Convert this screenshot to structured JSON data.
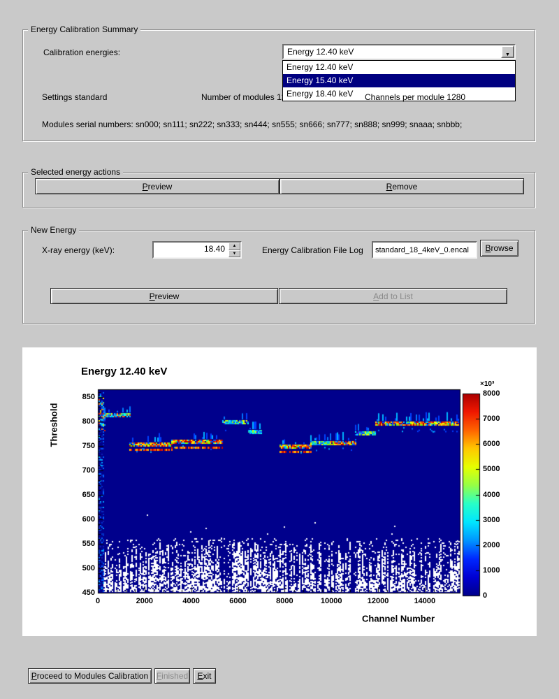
{
  "colors": {
    "window_bg": "#c9c9c9",
    "selection_bg": "#000080",
    "selection_fg": "#ffffff"
  },
  "summary": {
    "legend": "Energy Calibration Summary",
    "calibration_energies_label": "Calibration energies:",
    "combo_value": "Energy 12.40 keV",
    "dropdown_items": [
      "Energy 12.40 keV",
      "Energy 15.40 keV",
      "Energy 18.40 keV"
    ],
    "dropdown_selected_index": 1,
    "settings_label": "Settings standard",
    "modules_label": "Number of modules 12",
    "channels_label": "Channels per module 1280",
    "serials_label": "Modules serial numbers: sn000; sn111; sn222; sn333; sn444; sn555; sn666; sn777; sn888; sn999; snaaa; snbbb;"
  },
  "actions": {
    "legend": "Selected energy actions",
    "preview_label": "Preview",
    "remove_label": "Remove"
  },
  "new_energy": {
    "legend": "New Energy",
    "xray_label": "X-ray energy (keV):",
    "energy_value": "18.40",
    "file_log_label": "Energy Calibration File Log",
    "file_value": "standard_18_4keV_0.encal",
    "browse_label": "Browse",
    "preview_label": "Preview",
    "add_label": "Add to List"
  },
  "footer": {
    "proceed_label": "Proceed to Modules Calibration",
    "finished_label": "Finished",
    "exit_label": "Exit"
  },
  "chart_data": {
    "type": "heatmap",
    "title": "Energy 12.40 keV",
    "xlabel": "Channel Number",
    "ylabel": "Threshold",
    "xlim": [
      0,
      15500
    ],
    "ylim": [
      450,
      865
    ],
    "xticks": [
      0,
      2000,
      4000,
      6000,
      8000,
      10000,
      12000,
      14000
    ],
    "yticks": [
      450,
      500,
      550,
      600,
      650,
      700,
      750,
      800,
      850
    ],
    "background_value_color": "#00008c",
    "empty_color": "#ffffff",
    "noise_top_threshold": 560,
    "seed": 1337,
    "colorbar": {
      "min": 0,
      "max": 8000,
      "ticks": [
        0,
        1000,
        2000,
        3000,
        4000,
        5000,
        6000,
        7000,
        8000
      ],
      "scale_note": "×10³",
      "stops": [
        "#00008c",
        "#0000d2",
        "#0028ff",
        "#0096ff",
        "#00e6ff",
        "#28ffc8",
        "#96ff46",
        "#e6ff00",
        "#ffc800",
        "#ff6400",
        "#f01800",
        "#aa0000"
      ]
    },
    "palettes": {
      "hot": [
        "#b40000",
        "#d20000",
        "#f03000",
        "#ff6000",
        "#ff9600",
        "#ffd200",
        "#ffff00",
        "#78ff00",
        "#00c8ff",
        "#0050ff"
      ],
      "cool": [
        "#00ffff",
        "#00d2ff",
        "#00a0ff",
        "#0064ff",
        "#2832e6",
        "#28d2a0",
        "#96ff00",
        "#e1ff00"
      ],
      "mixed": [
        "#1e28c8",
        "#0064ff",
        "#00b4ff",
        "#00ffff",
        "#50e678",
        "#ffe100",
        "#ff7800",
        "#e12800"
      ]
    },
    "bands": [
      {
        "ch0": 100,
        "ch1": 1350,
        "threshold": 812,
        "style": "mixed",
        "whisker": 0.35
      },
      {
        "ch0": 1350,
        "ch1": 3150,
        "threshold": 752,
        "style": "hot",
        "double": true
      },
      {
        "ch0": 3150,
        "ch1": 5330,
        "threshold": 757,
        "style": "hot",
        "double": true
      },
      {
        "ch0": 5330,
        "ch1": 6440,
        "threshold": 797,
        "style": "cool"
      },
      {
        "ch0": 6440,
        "ch1": 6980,
        "threshold": 778,
        "style": "cool"
      },
      {
        "ch0": 7780,
        "ch1": 9100,
        "threshold": 748,
        "style": "hot",
        "double": true
      },
      {
        "ch0": 9100,
        "ch1": 9880,
        "threshold": 754,
        "style": "cool"
      },
      {
        "ch0": 9880,
        "ch1": 11020,
        "threshold": 754,
        "style": "hot"
      },
      {
        "ch0": 11020,
        "ch1": 11890,
        "threshold": 774,
        "style": "cool"
      },
      {
        "ch0": 11890,
        "ch1": 15450,
        "threshold": 795,
        "style": "hot",
        "whisker": 0.45
      }
    ]
  }
}
